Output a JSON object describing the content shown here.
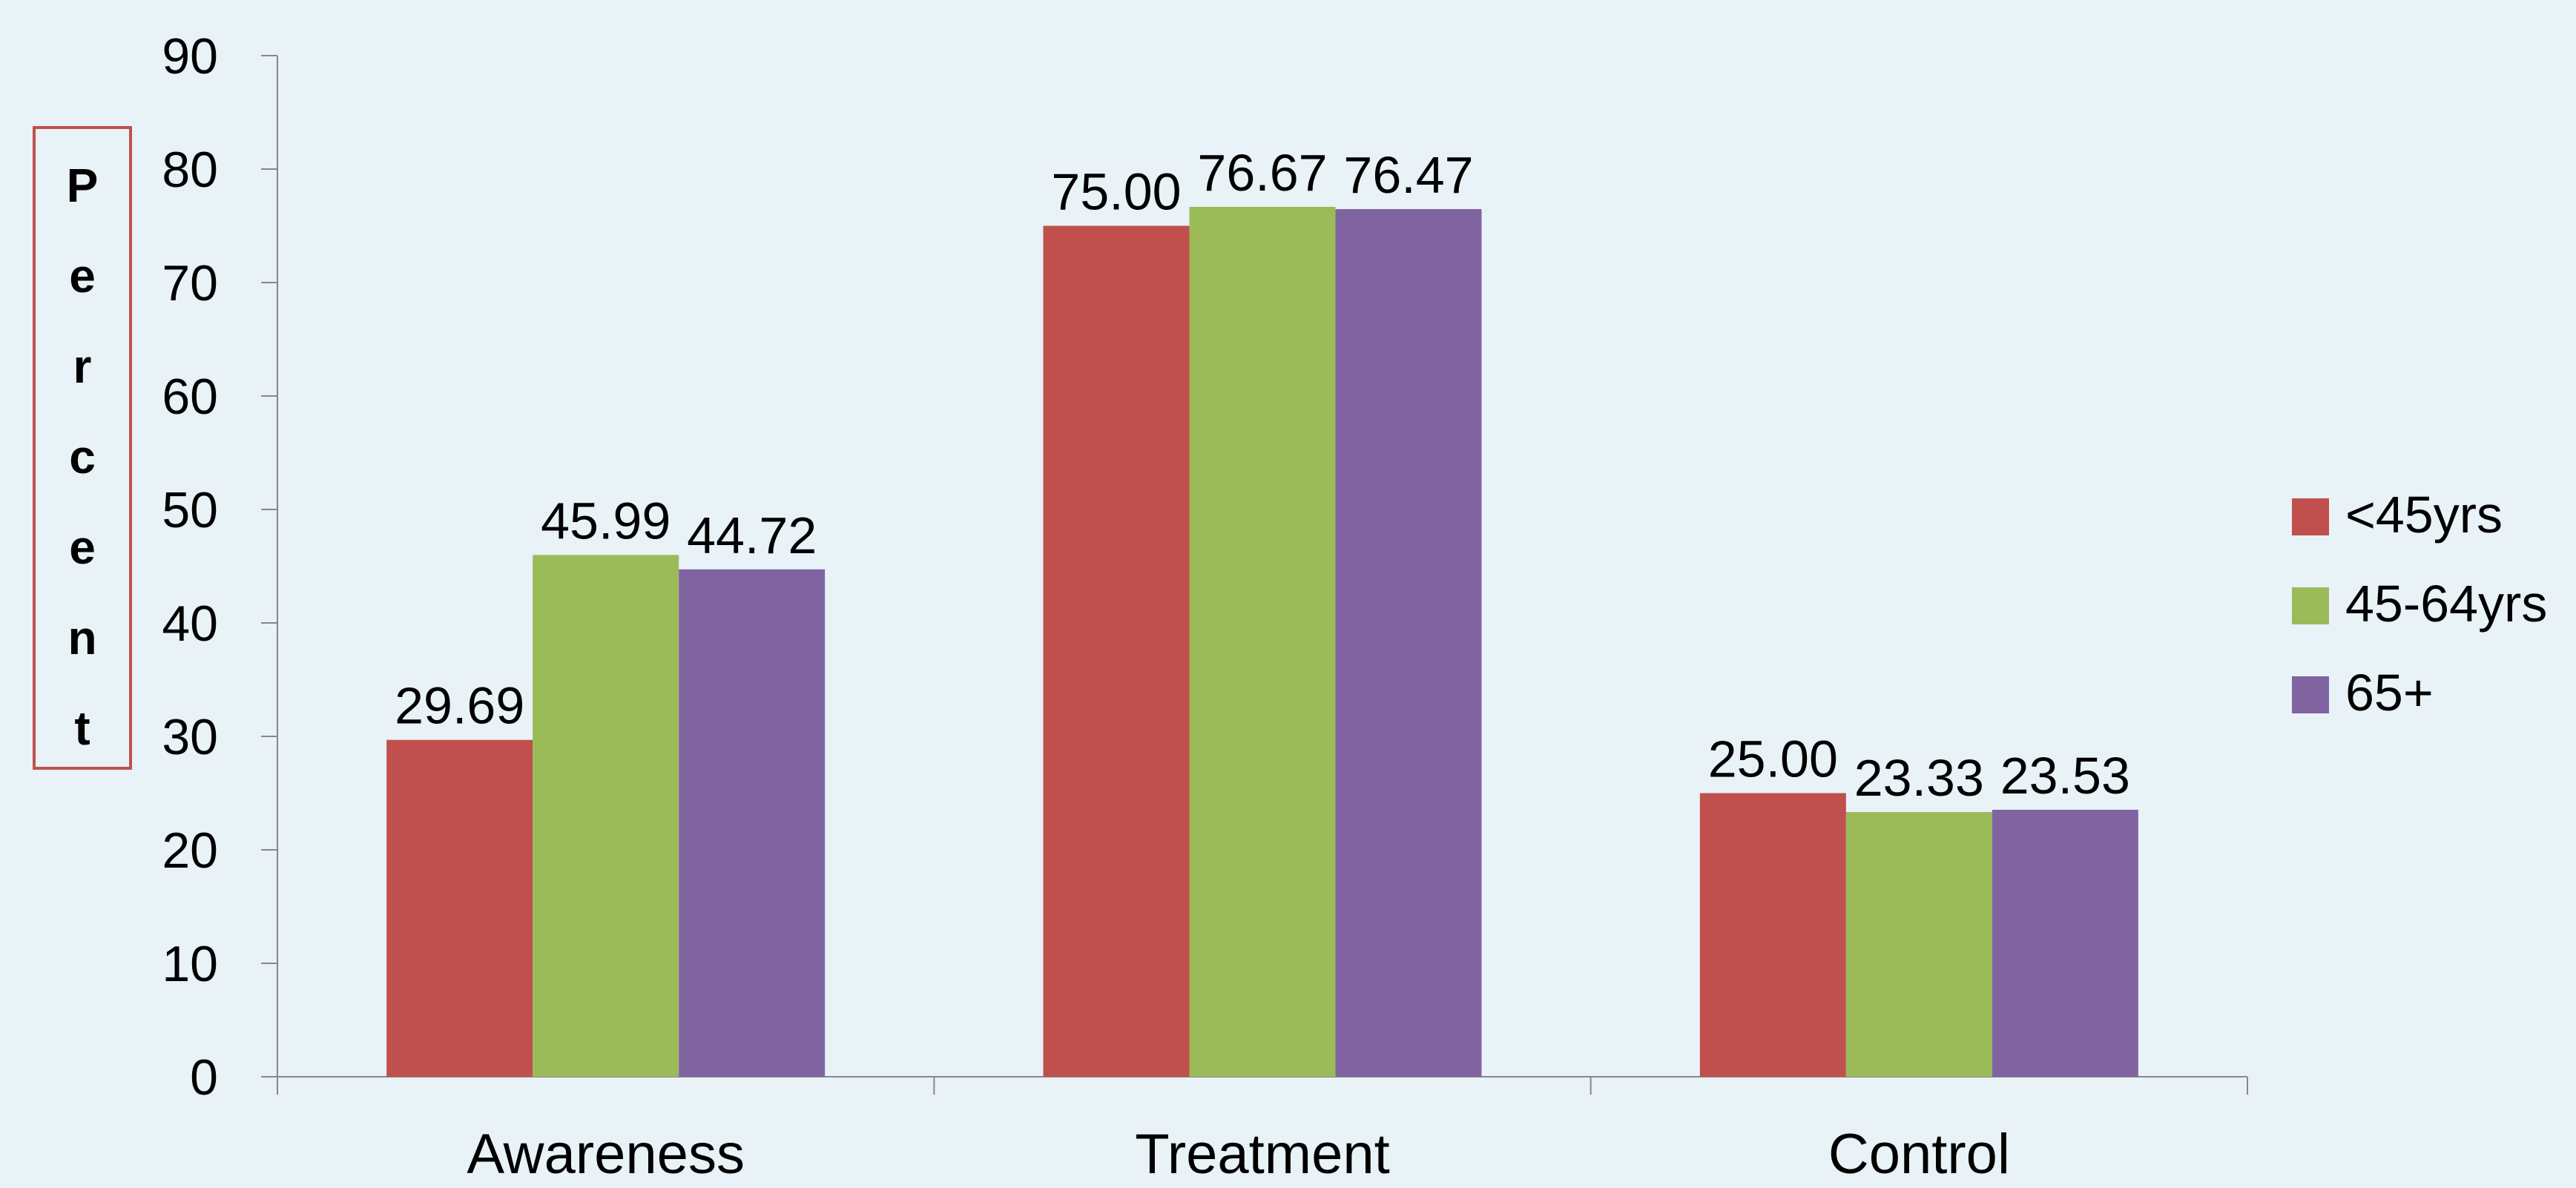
{
  "chart_data": {
    "type": "bar",
    "ylabel": "Percent",
    "categories": [
      "Awareness",
      "Treatment",
      "Control"
    ],
    "series": [
      {
        "name": "<45yrs",
        "color": "#c0504d",
        "values": [
          29.69,
          75.0,
          25.0
        ],
        "labels": [
          "29.69",
          "75.00",
          "25.00"
        ]
      },
      {
        "name": "45-64yrs",
        "color": "#9bbb59",
        "values": [
          45.99,
          76.67,
          23.33
        ],
        "labels": [
          "45.99",
          "76.67",
          "23.33"
        ]
      },
      {
        "name": "65+",
        "color": "#8064a2",
        "values": [
          44.72,
          76.47,
          23.53
        ],
        "labels": [
          "44.72",
          "76.47",
          "23.53"
        ]
      }
    ],
    "ylim": [
      0,
      90
    ],
    "yticks": [
      0,
      10,
      20,
      30,
      40,
      50,
      60,
      70,
      80,
      90
    ],
    "legend_position": "right",
    "grid": false,
    "background": "#e8f2f7",
    "ylabel_box_color": "#c0504d"
  }
}
